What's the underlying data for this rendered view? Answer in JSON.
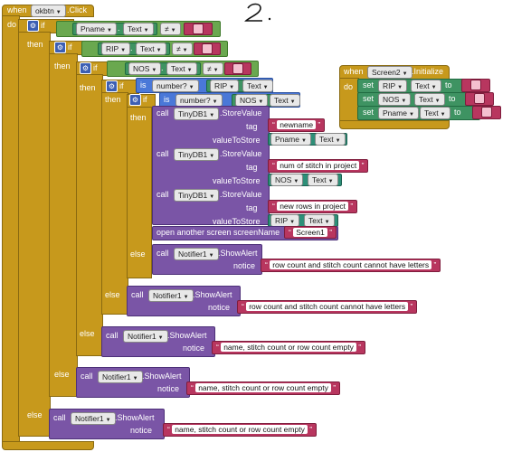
{
  "page_number": "2",
  "main_event": {
    "when": "when",
    "component": "okbtn",
    "event": ".Click",
    "do": "do"
  },
  "kw": {
    "if": "if",
    "then": "then",
    "else": "else",
    "is": "is",
    "call": "call",
    "set": "set",
    "to": "to",
    "neq": "≠",
    "dot": ".",
    "tag": "tag",
    "value_to_store": "valueToStore",
    "notice": "notice",
    "number_q": "number?"
  },
  "fields": {
    "pname": "Pname",
    "rip": "RIP",
    "nos": "NOS",
    "text": "Text"
  },
  "calls": {
    "store": {
      "component": "TinyDB1",
      "method": ".StoreValue"
    },
    "alert": {
      "component": "Notifier1",
      "method": ".ShowAlert"
    },
    "open_screen": "open another screen  screenName",
    "screen1": "Screen1"
  },
  "store_values": [
    {
      "tag": "newname",
      "field": "Pname"
    },
    {
      "tag": "num of stitch in project",
      "field": "NOS"
    },
    {
      "tag": "new rows in project",
      "field": "RIP"
    }
  ],
  "alerts": {
    "letters": "row count and stitch count cannot have letters",
    "empty": "name, stitch count or row count empty"
  },
  "init_event": {
    "when": "when",
    "component": "Screen2",
    "event": ".Initialize",
    "do": "do",
    "sets": [
      "RIP",
      "NOS",
      "Pname"
    ]
  }
}
